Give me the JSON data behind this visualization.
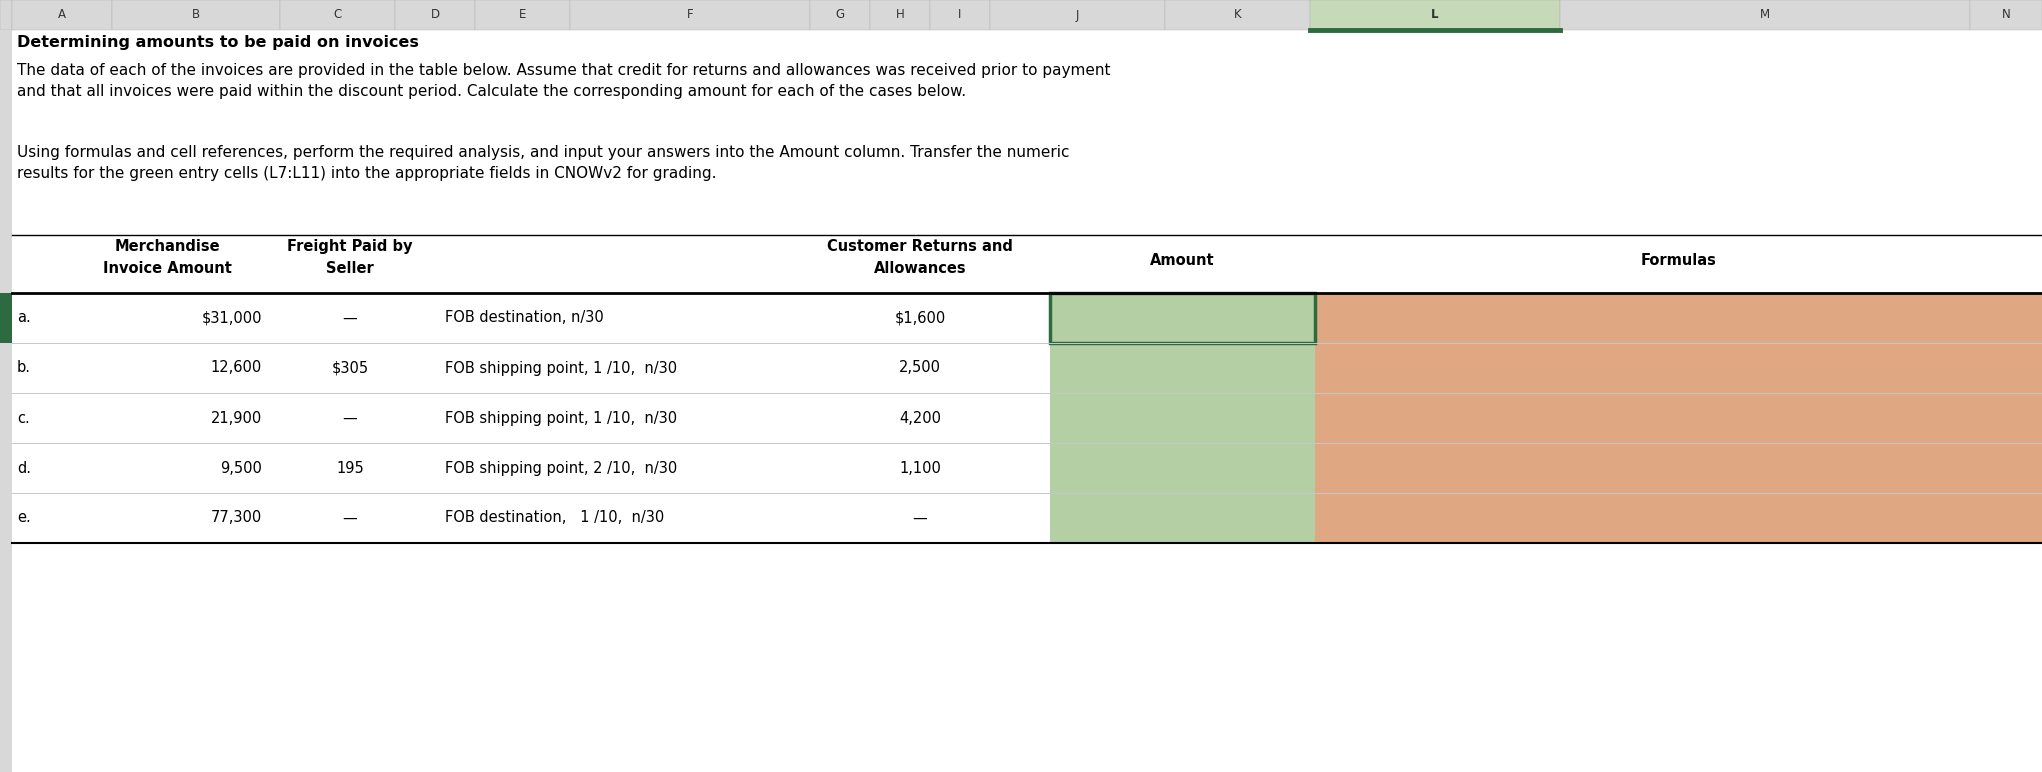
{
  "title_bold": "Determining amounts to be paid on invoices",
  "paragraph1": "The data of each of the invoices are provided in the table below. Assume that credit for returns and allowances was received prior to payment\nand that all invoices were paid within the discount period. Calculate the corresponding amount for each of the cases below.",
  "paragraph2": "Using formulas and cell references, perform the required analysis, and input your answers into the Amount column. Transfer the numeric\nresults for the green entry cells (L7:L11) into the appropriate fields in CNOWv2 for grading.",
  "col_headers_top": [
    "A",
    "B",
    "C",
    "D",
    "E",
    "F",
    "G",
    "H",
    "I",
    "J",
    "K",
    "L",
    "M",
    "N"
  ],
  "col_header_highlighted": "L",
  "table_headers": {
    "merch_line1": "Merchandise",
    "merch_line2": "Invoice Amount",
    "freight_line1": "Freight Paid by",
    "freight_line2": "Seller",
    "returns_line1": "Customer Returns and",
    "returns_line2": "Allowances",
    "amount": "Amount",
    "formulas": "Formulas"
  },
  "rows": [
    {
      "label": "a.",
      "merch": "$31,000",
      "freight": "—",
      "terms": "FOB destination, n/30",
      "returns": "$1,600"
    },
    {
      "label": "b.",
      "merch": "12,600",
      "freight": "$305",
      "terms": "FOB shipping point, 1 /10,  n/30",
      "returns": "2,500"
    },
    {
      "label": "c.",
      "merch": "21,900",
      "freight": "—",
      "terms": "FOB shipping point, 1 /10,  n/30",
      "returns": "4,200"
    },
    {
      "label": "d.",
      "merch": "9,500",
      "freight": "195",
      "terms": "FOB shipping point, 2 /10,  n/30",
      "returns": "1,100"
    },
    {
      "label": "e.",
      "merch": "77,300",
      "freight": "—",
      "terms": "FOB destination,   1 /10,  n/30",
      "returns": "—"
    }
  ],
  "colors": {
    "col_header_bg": "#d8d8d8",
    "col_header_selected_bg": "#c6d9b8",
    "col_header_selected_border": "#2d6a3f",
    "white": "#ffffff",
    "green_cell": "#b5cfa5",
    "orange_cell": "#dfa882",
    "black": "#000000",
    "row_divider": "#c8c8c8"
  },
  "figsize": [
    20.42,
    7.72
  ],
  "dpi": 100
}
